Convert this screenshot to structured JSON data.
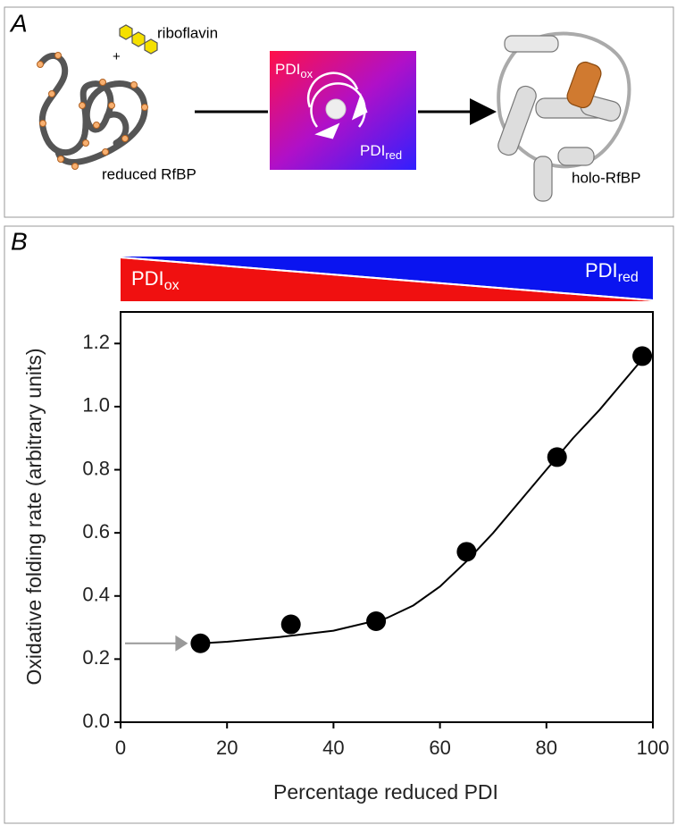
{
  "panel_a": {
    "label": "A",
    "ligand": "riboflavin",
    "plus": "+",
    "substrate": "reduced RfBP",
    "oxidized": {
      "main": "PDI",
      "sub": "ox"
    },
    "reduced": {
      "main": "PDI",
      "sub": "red"
    },
    "product": "holo-RfBP"
  },
  "chart_data": {
    "type": "scatter",
    "panel_label": "B",
    "gradient_left": {
      "main": "PDI",
      "sub": "ox"
    },
    "gradient_right": {
      "main": "PDI",
      "sub": "red"
    },
    "x_label": "Percentage reduced PDI",
    "y_label": "Oxidative folding rate (arbitrary  units)",
    "xlim": [
      0,
      100
    ],
    "xticks": [
      0,
      20,
      40,
      60,
      80,
      100
    ],
    "ylim": [
      0,
      1.3
    ],
    "yticks": [
      {
        "value": 0,
        "label": "0.0"
      },
      0.2,
      0.4,
      0.6,
      0.8,
      {
        "value": 1,
        "label": "1.0"
      },
      1.2
    ],
    "series": [
      {
        "style": "points",
        "color": "#000000",
        "x": [
          15,
          32,
          48,
          65,
          82,
          98
        ],
        "values": [
          0.25,
          0.31,
          0.32,
          0.54,
          0.84,
          1.16
        ]
      },
      {
        "style": "line",
        "color": "#000000",
        "x": [
          15,
          20,
          30,
          40,
          50,
          55,
          60,
          65,
          70,
          75,
          80,
          85,
          90,
          95,
          98
        ],
        "values": [
          0.25,
          0.255,
          0.27,
          0.29,
          0.33,
          0.37,
          0.43,
          0.51,
          0.6,
          0.7,
          0.8,
          0.9,
          0.99,
          1.09,
          1.15
        ]
      }
    ]
  }
}
